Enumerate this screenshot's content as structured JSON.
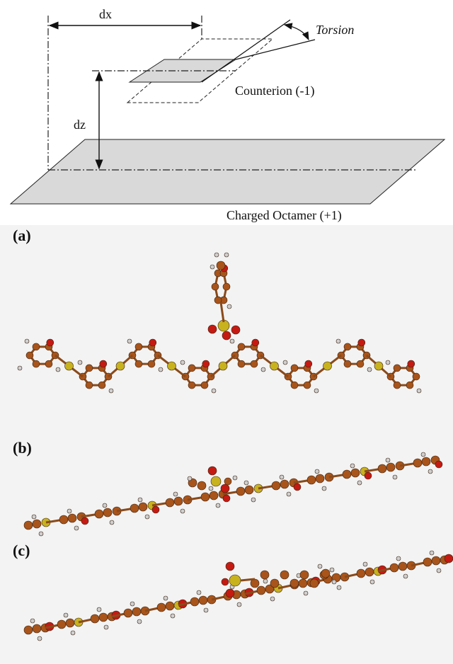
{
  "diagram": {
    "dx_label": "dx",
    "dz_label": "dz",
    "torsion_label": "Torsion",
    "counterion_label": "Counterion (-1)",
    "octamer_label": "Charged Octamer (+1)",
    "panels": [
      "(a)",
      "(b)",
      "(c)"
    ]
  }
}
